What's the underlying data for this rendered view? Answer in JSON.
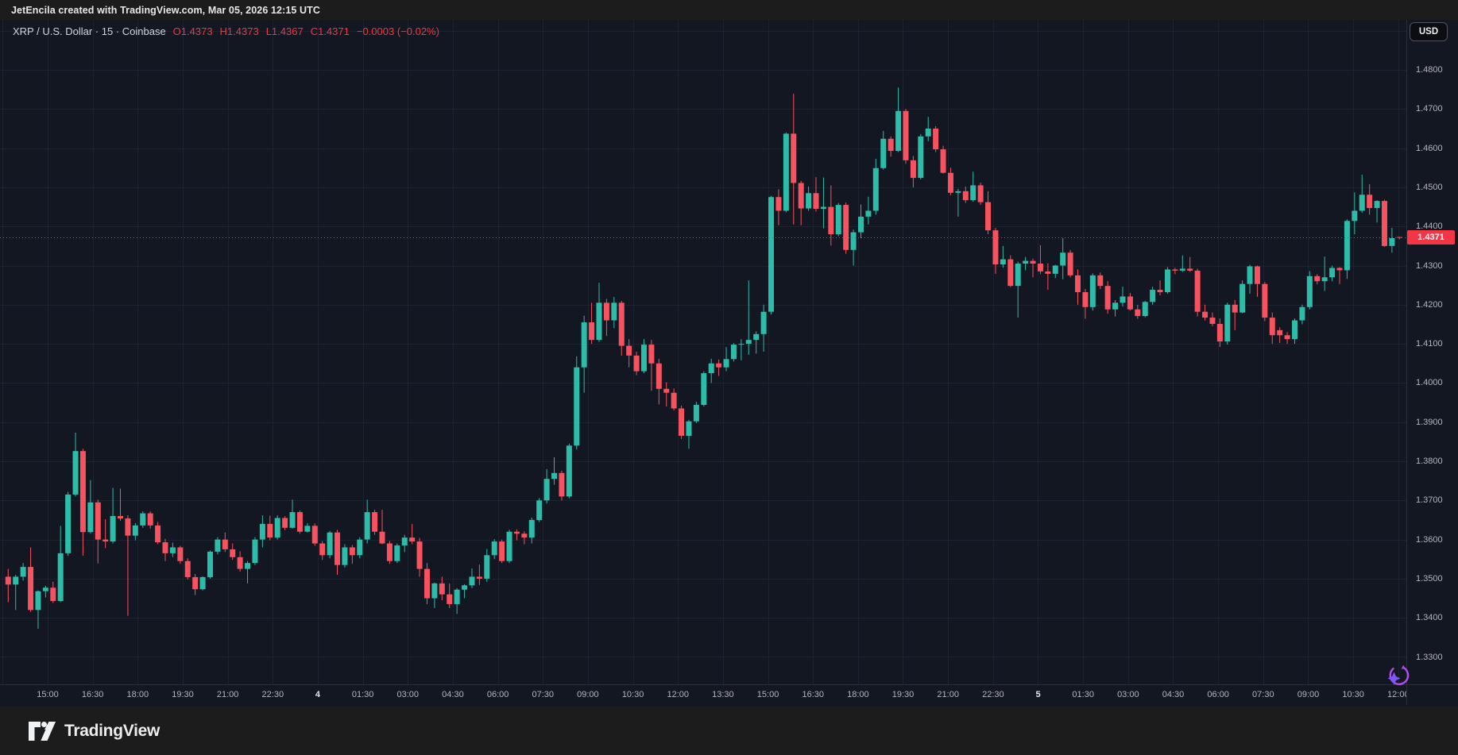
{
  "topbar": {
    "text": "JetEncila created with TradingView.com, Mar 05, 2026 12:15 UTC"
  },
  "legend": {
    "symbol": "XRP / U.S. Dollar · 15 · Coinbase",
    "open": "O1.4373",
    "high": "H1.4373",
    "low": "L1.4367",
    "close": "C1.4371",
    "change": "−0.0003 (−0.02%)"
  },
  "axis": {
    "currency": "USD",
    "price_labels": [
      "1.4800",
      "1.4700",
      "1.4600",
      "1.4500",
      "1.4400",
      "1.4300",
      "1.4200",
      "1.4100",
      "1.4000",
      "1.3900",
      "1.3800",
      "1.3700",
      "1.3600",
      "1.3500",
      "1.3400",
      "1.3300"
    ],
    "time_labels": [
      "15:00",
      "16:30",
      "18:00",
      "19:30",
      "21:00",
      "22:30",
      "4",
      "01:30",
      "03:00",
      "04:30",
      "06:00",
      "07:30",
      "09:00",
      "10:30",
      "12:00",
      "13:30",
      "15:00",
      "16:30",
      "18:00",
      "19:30",
      "21:00",
      "22:30",
      "5",
      "01:30",
      "03:00",
      "04:30",
      "06:00",
      "07:30",
      "09:00",
      "10:30",
      "12:00"
    ],
    "day_label_indices": [
      6,
      22
    ]
  },
  "price_line": {
    "label": "1.4371",
    "price": 1.4371
  },
  "footer": {
    "brand": "TradingView"
  },
  "colors": {
    "up": "#2cbca8",
    "down": "#f6525f",
    "accent_red": "#f23645",
    "chart_bg": "#131722",
    "frame_bg": "#1c1c1c",
    "grid": "#1e2230",
    "axis_text": "#b2b5be",
    "sparkle_purple": "#7f57f5",
    "sparkle_arc": "#b44df0"
  },
  "chart_data": {
    "type": "candlestick",
    "title": "XRP / U.S. Dollar",
    "interval_minutes": 15,
    "exchange": "Coinbase",
    "x_start": "Mar 03 13:30 UTC",
    "x_end": "Mar 05 12:00 UTC",
    "y_range": [
      1.326,
      1.492
    ],
    "grid": true,
    "last_price": 1.4371,
    "ohlc": [
      [
        1.3505,
        1.3525,
        1.344,
        1.3485
      ],
      [
        1.3485,
        1.351,
        1.342,
        1.3505
      ],
      [
        1.3505,
        1.354,
        1.3495,
        1.353
      ],
      [
        1.353,
        1.358,
        1.3415,
        1.342
      ],
      [
        1.342,
        1.347,
        1.3372,
        1.3468
      ],
      [
        1.3468,
        1.3482,
        1.3452,
        1.3477
      ],
      [
        1.3477,
        1.3492,
        1.3438,
        1.3443
      ],
      [
        1.3443,
        1.3635,
        1.344,
        1.3565
      ],
      [
        1.3565,
        1.3722,
        1.3558,
        1.3715
      ],
      [
        1.3715,
        1.3873,
        1.371,
        1.3826
      ],
      [
        1.3826,
        1.3832,
        1.3559,
        1.3619
      ],
      [
        1.3619,
        1.3752,
        1.3615,
        1.3695
      ],
      [
        1.3695,
        1.3702,
        1.3539,
        1.36
      ],
      [
        1.36,
        1.3652,
        1.3578,
        1.3595
      ],
      [
        1.3595,
        1.3732,
        1.359,
        1.366
      ],
      [
        1.366,
        1.373,
        1.3648,
        1.3654
      ],
      [
        1.3654,
        1.3662,
        1.3405,
        1.361
      ],
      [
        1.361,
        1.3642,
        1.3598,
        1.3636
      ],
      [
        1.3636,
        1.3672,
        1.363,
        1.3667
      ],
      [
        1.3667,
        1.3672,
        1.3628,
        1.3636
      ],
      [
        1.3636,
        1.3645,
        1.3588,
        1.3593
      ],
      [
        1.3593,
        1.3602,
        1.3545,
        1.3565
      ],
      [
        1.3565,
        1.3592,
        1.3555,
        1.358
      ],
      [
        1.358,
        1.3584,
        1.3538,
        1.3545
      ],
      [
        1.3545,
        1.3552,
        1.3498,
        1.3504
      ],
      [
        1.3504,
        1.3512,
        1.3458,
        1.3473
      ],
      [
        1.3473,
        1.3506,
        1.347,
        1.3504
      ],
      [
        1.3504,
        1.3572,
        1.35,
        1.3569
      ],
      [
        1.3569,
        1.3606,
        1.3562,
        1.36
      ],
      [
        1.36,
        1.3618,
        1.3568,
        1.3575
      ],
      [
        1.3575,
        1.359,
        1.3548,
        1.3555
      ],
      [
        1.3555,
        1.357,
        1.3518,
        1.3525
      ],
      [
        1.3525,
        1.3545,
        1.3488,
        1.354
      ],
      [
        1.354,
        1.3606,
        1.3535,
        1.36
      ],
      [
        1.36,
        1.3662,
        1.358,
        1.364
      ],
      [
        1.364,
        1.3661,
        1.3598,
        1.3605
      ],
      [
        1.3605,
        1.3662,
        1.36,
        1.3655
      ],
      [
        1.3655,
        1.366,
        1.3624,
        1.363
      ],
      [
        1.363,
        1.3702,
        1.3628,
        1.367
      ],
      [
        1.367,
        1.3674,
        1.3615,
        1.362
      ],
      [
        1.362,
        1.3642,
        1.3618,
        1.3635
      ],
      [
        1.3635,
        1.3641,
        1.3584,
        1.359
      ],
      [
        1.359,
        1.3596,
        1.3548,
        1.356
      ],
      [
        1.356,
        1.3622,
        1.3552,
        1.3618
      ],
      [
        1.3618,
        1.3625,
        1.351,
        1.3535
      ],
      [
        1.3535,
        1.3588,
        1.3528,
        1.358
      ],
      [
        1.358,
        1.3586,
        1.3538,
        1.356
      ],
      [
        1.356,
        1.3606,
        1.3552,
        1.36
      ],
      [
        1.36,
        1.3702,
        1.359,
        1.367
      ],
      [
        1.367,
        1.3676,
        1.3612,
        1.362
      ],
      [
        1.362,
        1.3676,
        1.3588,
        1.359
      ],
      [
        1.359,
        1.3596,
        1.3538,
        1.3545
      ],
      [
        1.3545,
        1.359,
        1.354,
        1.3585
      ],
      [
        1.3585,
        1.3612,
        1.3568,
        1.3605
      ],
      [
        1.3605,
        1.364,
        1.3588,
        1.3595
      ],
      [
        1.3595,
        1.3604,
        1.3505,
        1.3525
      ],
      [
        1.3525,
        1.354,
        1.3435,
        1.345
      ],
      [
        1.345,
        1.349,
        1.3425,
        1.3488
      ],
      [
        1.3488,
        1.3505,
        1.3445,
        1.346
      ],
      [
        1.346,
        1.3488,
        1.3425,
        1.3435
      ],
      [
        1.3435,
        1.3476,
        1.341,
        1.3472
      ],
      [
        1.3472,
        1.3486,
        1.345,
        1.3483
      ],
      [
        1.3483,
        1.3526,
        1.3476,
        1.3505
      ],
      [
        1.3505,
        1.3536,
        1.3484,
        1.35
      ],
      [
        1.35,
        1.3576,
        1.3492,
        1.356
      ],
      [
        1.356,
        1.3601,
        1.355,
        1.3595
      ],
      [
        1.3595,
        1.36,
        1.354,
        1.3545
      ],
      [
        1.3545,
        1.3625,
        1.354,
        1.362
      ],
      [
        1.362,
        1.3626,
        1.3598,
        1.3615
      ],
      [
        1.3615,
        1.3621,
        1.3588,
        1.3605
      ],
      [
        1.3605,
        1.3656,
        1.359,
        1.365
      ],
      [
        1.365,
        1.3706,
        1.3645,
        1.37
      ],
      [
        1.37,
        1.378,
        1.3692,
        1.3755
      ],
      [
        1.3755,
        1.381,
        1.374,
        1.377
      ],
      [
        1.377,
        1.3776,
        1.37,
        1.371
      ],
      [
        1.371,
        1.3845,
        1.3705,
        1.384
      ],
      [
        1.384,
        1.4068,
        1.383,
        1.404
      ],
      [
        1.404,
        1.4172,
        1.3975,
        1.4155
      ],
      [
        1.4155,
        1.4205,
        1.41,
        1.411
      ],
      [
        1.411,
        1.4256,
        1.4105,
        1.4205
      ],
      [
        1.4205,
        1.4215,
        1.412,
        1.416
      ],
      [
        1.416,
        1.422,
        1.414,
        1.4205
      ],
      [
        1.4205,
        1.421,
        1.407,
        1.4095
      ],
      [
        1.4095,
        1.4112,
        1.404,
        1.407
      ],
      [
        1.407,
        1.408,
        1.402,
        1.403
      ],
      [
        1.403,
        1.4112,
        1.4025,
        1.4098
      ],
      [
        1.4098,
        1.411,
        1.398,
        1.405
      ],
      [
        1.405,
        1.4062,
        1.3945,
        1.3985
      ],
      [
        1.3985,
        1.4002,
        1.394,
        1.3975
      ],
      [
        1.3975,
        1.3986,
        1.393,
        1.3935
      ],
      [
        1.3935,
        1.3942,
        1.3857,
        1.3865
      ],
      [
        1.3865,
        1.3906,
        1.3832,
        1.3902
      ],
      [
        1.3902,
        1.3952,
        1.3898,
        1.3944
      ],
      [
        1.3944,
        1.403,
        1.394,
        1.4025
      ],
      [
        1.4025,
        1.4062,
        1.4,
        1.405
      ],
      [
        1.405,
        1.406,
        1.4018,
        1.404
      ],
      [
        1.404,
        1.4092,
        1.403,
        1.4061
      ],
      [
        1.4061,
        1.4102,
        1.4055,
        1.4098
      ],
      [
        1.4098,
        1.4112,
        1.4058,
        1.41
      ],
      [
        1.41,
        1.4262,
        1.4072,
        1.411
      ],
      [
        1.411,
        1.4132,
        1.4075,
        1.4125
      ],
      [
        1.4125,
        1.42,
        1.408,
        1.4182
      ],
      [
        1.4182,
        1.4478,
        1.4175,
        1.4475
      ],
      [
        1.4475,
        1.4495,
        1.4403,
        1.444
      ],
      [
        1.444,
        1.464,
        1.4436,
        1.4637
      ],
      [
        1.4637,
        1.4739,
        1.4405,
        1.4511
      ],
      [
        1.4511,
        1.4516,
        1.4403,
        1.4446
      ],
      [
        1.4446,
        1.4502,
        1.444,
        1.4485
      ],
      [
        1.4485,
        1.4526,
        1.4438,
        1.4445
      ],
      [
        1.4445,
        1.4525,
        1.4395,
        1.445
      ],
      [
        1.445,
        1.4505,
        1.4351,
        1.438
      ],
      [
        1.438,
        1.446,
        1.4375,
        1.4455
      ],
      [
        1.4455,
        1.4461,
        1.433,
        1.434
      ],
      [
        1.434,
        1.4392,
        1.43,
        1.4385
      ],
      [
        1.4385,
        1.4456,
        1.437,
        1.4425
      ],
      [
        1.4425,
        1.4476,
        1.4405,
        1.444
      ],
      [
        1.444,
        1.4573,
        1.443,
        1.4549
      ],
      [
        1.4549,
        1.4644,
        1.4545,
        1.4624
      ],
      [
        1.4624,
        1.463,
        1.4578,
        1.4593
      ],
      [
        1.4593,
        1.4755,
        1.459,
        1.4695
      ],
      [
        1.4695,
        1.47,
        1.456,
        1.4569
      ],
      [
        1.4569,
        1.458,
        1.45,
        1.4524
      ],
      [
        1.4524,
        1.4636,
        1.452,
        1.463
      ],
      [
        1.463,
        1.468,
        1.4618,
        1.465
      ],
      [
        1.465,
        1.4656,
        1.459,
        1.4597
      ],
      [
        1.4597,
        1.4606,
        1.4535,
        1.4537
      ],
      [
        1.4537,
        1.455,
        1.448,
        1.4486
      ],
      [
        1.4486,
        1.4496,
        1.4425,
        1.449
      ],
      [
        1.449,
        1.4502,
        1.446,
        1.4467
      ],
      [
        1.4467,
        1.454,
        1.4463,
        1.4505
      ],
      [
        1.4505,
        1.4512,
        1.4455,
        1.4462
      ],
      [
        1.4462,
        1.449,
        1.438,
        1.439
      ],
      [
        1.439,
        1.4396,
        1.4279,
        1.4303
      ],
      [
        1.4303,
        1.435,
        1.4295,
        1.4316
      ],
      [
        1.4316,
        1.4326,
        1.4245,
        1.4248
      ],
      [
        1.4248,
        1.431,
        1.4167,
        1.4305
      ],
      [
        1.4305,
        1.4322,
        1.4288,
        1.4312
      ],
      [
        1.4312,
        1.4318,
        1.427,
        1.4305
      ],
      [
        1.4305,
        1.4352,
        1.4278,
        1.4285
      ],
      [
        1.4285,
        1.4306,
        1.4238,
        1.4279
      ],
      [
        1.4279,
        1.4302,
        1.4268,
        1.43
      ],
      [
        1.43,
        1.437,
        1.4265,
        1.4333
      ],
      [
        1.4333,
        1.434,
        1.427,
        1.4275
      ],
      [
        1.4275,
        1.429,
        1.42,
        1.4232
      ],
      [
        1.4232,
        1.424,
        1.4164,
        1.4194
      ],
      [
        1.4194,
        1.428,
        1.4185,
        1.4275
      ],
      [
        1.4275,
        1.4282,
        1.424,
        1.4248
      ],
      [
        1.4248,
        1.426,
        1.4177,
        1.4188
      ],
      [
        1.4188,
        1.4212,
        1.417,
        1.4205
      ],
      [
        1.4205,
        1.4246,
        1.4195,
        1.4221
      ],
      [
        1.4221,
        1.423,
        1.4185,
        1.4188
      ],
      [
        1.4188,
        1.42,
        1.4164,
        1.4171
      ],
      [
        1.4171,
        1.421,
        1.4168,
        1.4207
      ],
      [
        1.4207,
        1.4246,
        1.42,
        1.4238
      ],
      [
        1.4238,
        1.4262,
        1.4224,
        1.4232
      ],
      [
        1.4232,
        1.4296,
        1.4228,
        1.429
      ],
      [
        1.429,
        1.4294,
        1.4278,
        1.4287
      ],
      [
        1.4287,
        1.4326,
        1.4284,
        1.4292
      ],
      [
        1.4292,
        1.4322,
        1.4284,
        1.4287
      ],
      [
        1.4287,
        1.4292,
        1.417,
        1.4182
      ],
      [
        1.4182,
        1.42,
        1.416,
        1.4167
      ],
      [
        1.4167,
        1.418,
        1.4145,
        1.4151
      ],
      [
        1.4151,
        1.4165,
        1.4092,
        1.4106
      ],
      [
        1.4106,
        1.4205,
        1.4098,
        1.42
      ],
      [
        1.42,
        1.4212,
        1.4135,
        1.418
      ],
      [
        1.418,
        1.4262,
        1.4178,
        1.4253
      ],
      [
        1.4253,
        1.4302,
        1.4228,
        1.4298
      ],
      [
        1.4298,
        1.43,
        1.422,
        1.4253
      ],
      [
        1.4253,
        1.4258,
        1.4158,
        1.4167
      ],
      [
        1.4167,
        1.418,
        1.41,
        1.4122
      ],
      [
        1.4135,
        1.4142,
        1.4102,
        1.4122
      ],
      [
        1.4122,
        1.413,
        1.41,
        1.4112
      ],
      [
        1.4112,
        1.4165,
        1.41,
        1.416
      ],
      [
        1.416,
        1.42,
        1.415,
        1.4194
      ],
      [
        1.4194,
        1.4286,
        1.4188,
        1.4273
      ],
      [
        1.4273,
        1.4278,
        1.4252,
        1.426
      ],
      [
        1.426,
        1.4323,
        1.4235,
        1.427
      ],
      [
        1.427,
        1.43,
        1.426,
        1.4294
      ],
      [
        1.4294,
        1.4296,
        1.4253,
        1.4288
      ],
      [
        1.4288,
        1.4418,
        1.4266,
        1.4414
      ],
      [
        1.4414,
        1.4487,
        1.438,
        1.444
      ],
      [
        1.444,
        1.4532,
        1.4435,
        1.4481
      ],
      [
        1.4481,
        1.4508,
        1.443,
        1.4447
      ],
      [
        1.4447,
        1.4467,
        1.441,
        1.4465
      ],
      [
        1.4465,
        1.4468,
        1.4348,
        1.435
      ],
      [
        1.435,
        1.4396,
        1.4333,
        1.437
      ],
      [
        1.4373,
        1.4373,
        1.4367,
        1.4371
      ]
    ]
  }
}
